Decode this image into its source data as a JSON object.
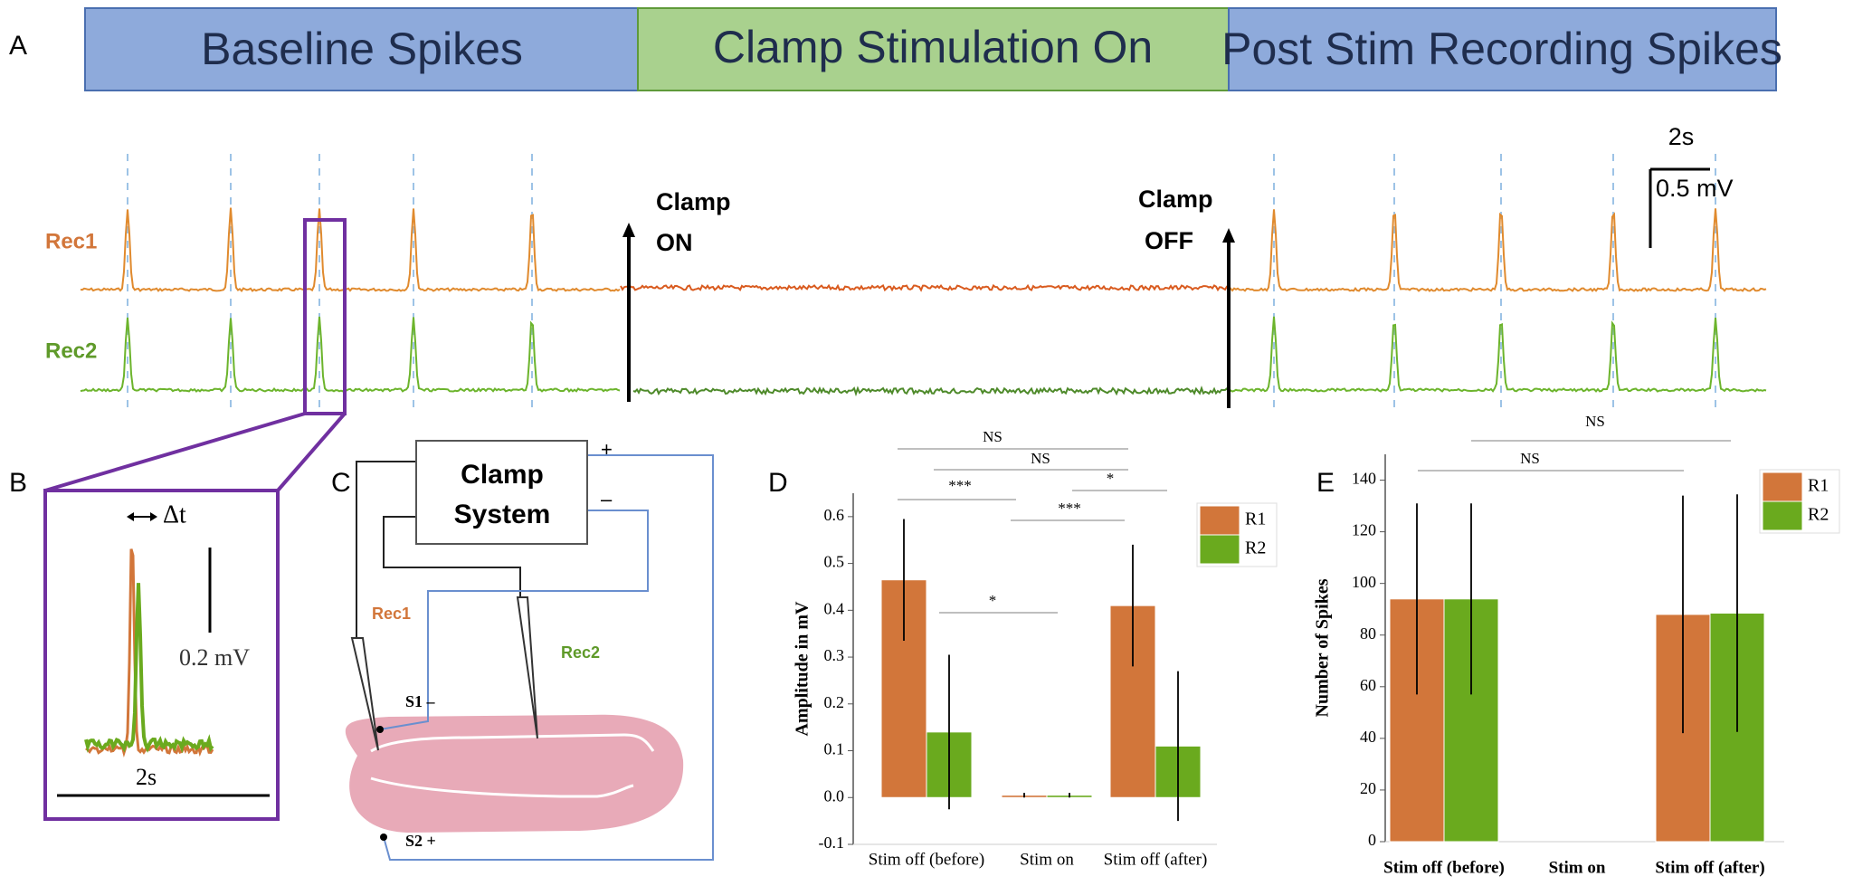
{
  "panel_labels": [
    "A",
    "B",
    "C",
    "D",
    "E"
  ],
  "phases": [
    "Baseline Spikes",
    "Clamp Stimulation On",
    "Post Stim Recording Spikes"
  ],
  "traces": [
    "Rec1",
    "Rec2"
  ],
  "clamp_on": [
    "Clamp",
    "ON"
  ],
  "clamp_off": [
    "Clamp",
    "OFF"
  ],
  "scale_bar": {
    "time": "2s",
    "amplitude": "0.5 mV"
  },
  "inset": {
    "delta": "Δt",
    "amplitude": "0.2 mV",
    "time": "2s"
  },
  "diagram": {
    "box": [
      "Clamp",
      "System"
    ],
    "plus": "+",
    "minus": "–",
    "rec1": "Rec1",
    "rec2": "Rec2",
    "s1": "S1 –",
    "s2": "S2 +"
  },
  "chart_data": [
    {
      "type": "bar",
      "ylabel": "Amplitude in mV",
      "categories": [
        "Stim off (before)",
        "Stim on",
        "Stim off (after)"
      ],
      "series": [
        {
          "name": "R1",
          "color": "#d2763a",
          "values": [
            0.465,
            0.005,
            0.41
          ],
          "errors": [
            0.13,
            0.005,
            0.13
          ]
        },
        {
          "name": "R2",
          "color": "#6aaa1e",
          "values": [
            0.14,
            0.005,
            0.11
          ],
          "errors": [
            0.165,
            0.005,
            0.16
          ]
        }
      ],
      "ylim": [
        -0.1,
        0.65
      ],
      "yticks": [
        -0.1,
        {
          "value": 0,
          "label": "0.0"
        },
        0.1,
        0.2,
        0.3,
        0.4,
        0.5,
        0.6
      ],
      "annotations": [
        "NS",
        "NS",
        "***",
        "*",
        "***",
        "*"
      ]
    },
    {
      "type": "bar",
      "ylabel": "Number of Spikes",
      "categories": [
        "Stim off (before)",
        "Stim on",
        "Stim off (after)"
      ],
      "series": [
        {
          "name": "R1",
          "color": "#d2763a",
          "values": [
            94,
            0,
            88
          ],
          "errors": [
            37,
            0,
            46
          ]
        },
        {
          "name": "R2",
          "color": "#6aaa1e",
          "values": [
            94,
            0,
            88.5
          ],
          "errors": [
            37,
            0,
            46
          ]
        }
      ],
      "ylim": [
        0,
        150
      ],
      "yticks": [
        0,
        20,
        40,
        60,
        80,
        100,
        120,
        140
      ],
      "annotations": [
        "NS",
        "NS"
      ]
    }
  ]
}
